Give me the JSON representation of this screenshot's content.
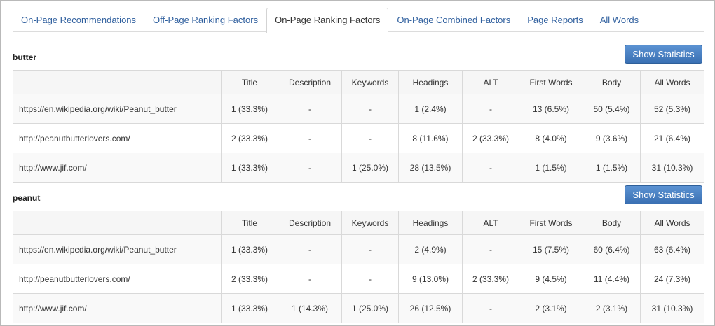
{
  "tabs": [
    {
      "label": "On-Page Recommendations",
      "active": false
    },
    {
      "label": "Off-Page Ranking Factors",
      "active": false
    },
    {
      "label": "On-Page Ranking Factors",
      "active": true
    },
    {
      "label": "On-Page Combined Factors",
      "active": false
    },
    {
      "label": "Page Reports",
      "active": false
    },
    {
      "label": "All Words",
      "active": false
    }
  ],
  "columns": [
    "",
    "Title",
    "Description",
    "Keywords",
    "Headings",
    "ALT",
    "First Words",
    "Body",
    "All Words"
  ],
  "show_statistics_label": "Show Statistics",
  "sections": [
    {
      "keyword": "butter",
      "rows": [
        [
          "https://en.wikipedia.org/wiki/Peanut_butter",
          "1 (33.3%)",
          "-",
          "-",
          "1 (2.4%)",
          "-",
          "13 (6.5%)",
          "50 (5.4%)",
          "52 (5.3%)"
        ],
        [
          "http://peanutbutterlovers.com/",
          "2 (33.3%)",
          "-",
          "-",
          "8 (11.6%)",
          "2 (33.3%)",
          "8 (4.0%)",
          "9 (3.6%)",
          "21 (6.4%)"
        ],
        [
          "http://www.jif.com/",
          "1 (33.3%)",
          "-",
          "1 (25.0%)",
          "28 (13.5%)",
          "-",
          "1 (1.5%)",
          "1 (1.5%)",
          "31 (10.3%)"
        ]
      ]
    },
    {
      "keyword": "peanut",
      "rows": [
        [
          "https://en.wikipedia.org/wiki/Peanut_butter",
          "1 (33.3%)",
          "-",
          "-",
          "2 (4.9%)",
          "-",
          "15 (7.5%)",
          "60 (6.4%)",
          "63 (6.4%)"
        ],
        [
          "http://peanutbutterlovers.com/",
          "2 (33.3%)",
          "-",
          "-",
          "9 (13.0%)",
          "2 (33.3%)",
          "9 (4.5%)",
          "11 (4.4%)",
          "24 (7.3%)"
        ],
        [
          "http://www.jif.com/",
          "1 (33.3%)",
          "1 (14.3%)",
          "1 (25.0%)",
          "26 (12.5%)",
          "-",
          "2 (3.1%)",
          "2 (3.1%)",
          "31 (10.3%)"
        ]
      ]
    }
  ],
  "colors": {
    "tab_link": "#2f5f9e",
    "button": "#4a80c4"
  }
}
